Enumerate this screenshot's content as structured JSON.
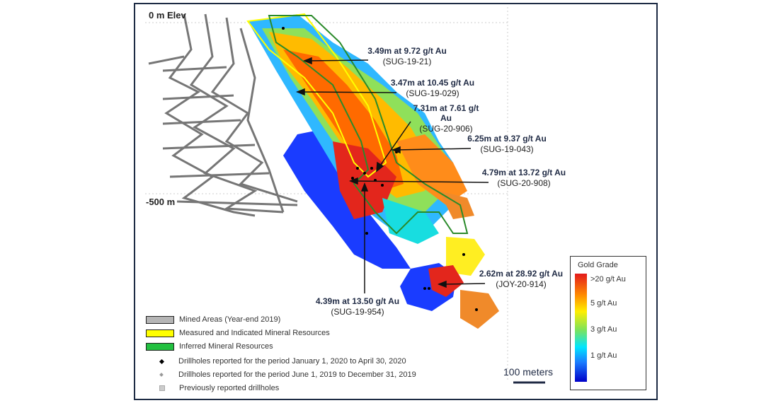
{
  "axis_labels": {
    "top": "0 m Elev",
    "mid": "-500 m"
  },
  "intercepts": [
    {
      "grade": "3.49m at 9.72 g/t Au",
      "hole": "(SUG-19-21)"
    },
    {
      "grade": "3.47m at 10.45 g/t Au",
      "hole": "(SUG-19-029)"
    },
    {
      "grade": "7.31m at 7.61 g/t",
      "grade2": "Au",
      "hole": "(SUG-20-906)"
    },
    {
      "grade": "6.25m at 9.37 g/t Au",
      "hole": "(SUG-19-043)"
    },
    {
      "grade": "4.79m at 13.72 g/t Au",
      "hole": "(SUG-20-908)"
    },
    {
      "grade": "4.39m at 13.50 g/t Au",
      "hole": "(SUG-19-954)"
    },
    {
      "grade": "2.62m at 28.92 g/t Au",
      "hole": "(JOY-20-914)"
    }
  ],
  "legend": [
    {
      "label": "Mined Areas (Year-end 2019)",
      "color": "#b5b5b5"
    },
    {
      "label": "Measured and Indicated Mineral Resources",
      "color": "#ffff00"
    },
    {
      "label": "Inferred Mineral Resources",
      "color": "#22c040"
    },
    {
      "label": "Drillholes reported for the period January 1, 2020 to April 30, 2020",
      "color": "#000000"
    },
    {
      "label": "Drillholes reported for the period June 1, 2019 to December 31, 2019",
      "color": "#999999"
    },
    {
      "label": "Previously reported drillholes",
      "color": "#bbbbbb"
    }
  ],
  "colorbar": {
    "title": "Gold Grade",
    "ticks": [
      ">20 g/t Au",
      "5 g/t Au",
      "3 g/t Au",
      "1 g/t Au"
    ]
  },
  "scale_bar": "100 meters"
}
